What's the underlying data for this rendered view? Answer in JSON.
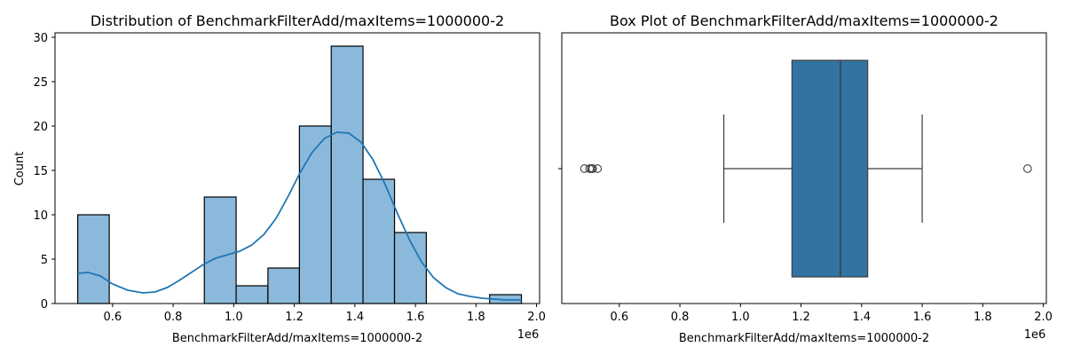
{
  "chart_data": [
    {
      "type": "histogram",
      "title": "Distribution of BenchmarkFilterAdd/maxItems=1000000-2",
      "xlabel": "BenchmarkFilterAdd/maxItems=1000000-2",
      "ylabel": "Count",
      "x_offset_label": "1e6",
      "xlim": [
        0.41,
        2.01
      ],
      "ylim": [
        0,
        30.5
      ],
      "xticks": [
        0.6,
        0.8,
        1.0,
        1.2,
        1.4,
        1.6,
        1.8,
        2.0
      ],
      "xtick_labels": [
        "0.6",
        "0.8",
        "1.0",
        "1.2",
        "1.4",
        "1.6",
        "1.8",
        "2.0"
      ],
      "yticks": [
        0,
        5,
        10,
        15,
        20,
        25,
        30
      ],
      "ytick_labels": [
        "0",
        "5",
        "10",
        "15",
        "20",
        "25",
        "30"
      ],
      "bins": [
        {
          "x0": 0.485,
          "x1": 0.589,
          "count": 10
        },
        {
          "x0": 0.589,
          "x1": 0.694,
          "count": 0
        },
        {
          "x0": 0.694,
          "x1": 0.798,
          "count": 0
        },
        {
          "x0": 0.798,
          "x1": 0.903,
          "count": 0
        },
        {
          "x0": 0.903,
          "x1": 1.008,
          "count": 12
        },
        {
          "x0": 1.008,
          "x1": 1.113,
          "count": 2
        },
        {
          "x0": 1.113,
          "x1": 1.217,
          "count": 4
        },
        {
          "x0": 1.217,
          "x1": 1.322,
          "count": 20
        },
        {
          "x0": 1.322,
          "x1": 1.427,
          "count": 29
        },
        {
          "x0": 1.427,
          "x1": 1.531,
          "count": 14
        },
        {
          "x0": 1.531,
          "x1": 1.636,
          "count": 8
        },
        {
          "x0": 1.636,
          "x1": 1.741,
          "count": 0
        },
        {
          "x0": 1.741,
          "x1": 1.845,
          "count": 0
        },
        {
          "x0": 1.845,
          "x1": 1.95,
          "count": 1
        }
      ],
      "kde": [
        [
          0.485,
          3.4
        ],
        [
          0.52,
          3.5
        ],
        [
          0.56,
          3.1
        ],
        [
          0.6,
          2.2
        ],
        [
          0.65,
          1.5
        ],
        [
          0.7,
          1.2
        ],
        [
          0.74,
          1.3
        ],
        [
          0.78,
          1.8
        ],
        [
          0.82,
          2.6
        ],
        [
          0.86,
          3.5
        ],
        [
          0.9,
          4.4
        ],
        [
          0.94,
          5.1
        ],
        [
          0.98,
          5.5
        ],
        [
          1.02,
          5.9
        ],
        [
          1.06,
          6.6
        ],
        [
          1.1,
          7.8
        ],
        [
          1.14,
          9.6
        ],
        [
          1.18,
          12.1
        ],
        [
          1.22,
          14.8
        ],
        [
          1.26,
          17.1
        ],
        [
          1.3,
          18.6
        ],
        [
          1.34,
          19.3
        ],
        [
          1.38,
          19.2
        ],
        [
          1.42,
          18.2
        ],
        [
          1.46,
          16.2
        ],
        [
          1.5,
          13.4
        ],
        [
          1.54,
          10.2
        ],
        [
          1.58,
          7.2
        ],
        [
          1.62,
          4.7
        ],
        [
          1.66,
          2.9
        ],
        [
          1.7,
          1.8
        ],
        [
          1.74,
          1.1
        ],
        [
          1.78,
          0.8
        ],
        [
          1.82,
          0.6
        ],
        [
          1.86,
          0.5
        ],
        [
          1.9,
          0.4
        ],
        [
          1.95,
          0.4
        ]
      ],
      "colors": {
        "bar_fill": "#8bb9db",
        "bar_edge": "#000000",
        "kde_line": "#1f77b4"
      }
    },
    {
      "type": "box",
      "title": "Box Plot of BenchmarkFilterAdd/maxItems=1000000-2",
      "xlabel": "BenchmarkFilterAdd/maxItems=1000000-2",
      "x_offset_label": "1e6",
      "xlim": [
        0.41,
        2.01
      ],
      "xticks": [
        0.6,
        0.8,
        1.0,
        1.2,
        1.4,
        1.6,
        1.8,
        2.0
      ],
      "xtick_labels": [
        "0.6",
        "0.8",
        "1.0",
        "1.2",
        "1.4",
        "1.6",
        "1.8",
        "2.0"
      ],
      "whisker_low": 0.945,
      "q1": 1.17,
      "median": 1.33,
      "q3": 1.42,
      "whisker_high": 1.6,
      "outliers": [
        0.485,
        0.502,
        0.508,
        0.512,
        0.528,
        1.948
      ],
      "colors": {
        "box_fill": "#3274a1",
        "lines": "#3d3d3d"
      }
    }
  ]
}
